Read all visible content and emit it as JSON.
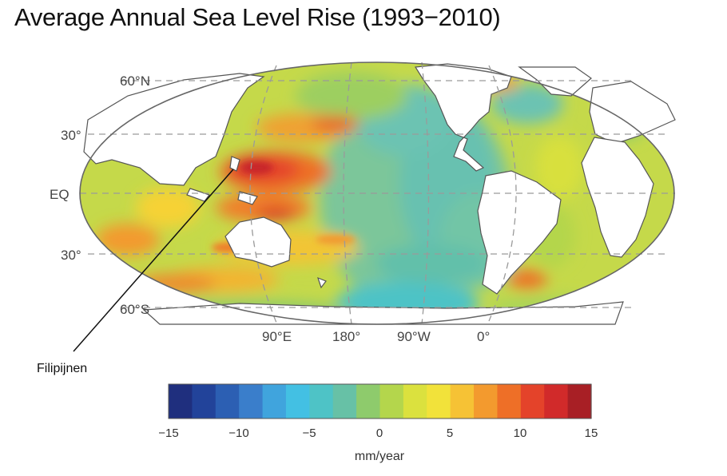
{
  "title": "Average Annual Sea Level Rise (1993−2010)",
  "map": {
    "latitude_labels": [
      "60°N",
      "30°",
      "EQ",
      "30°",
      "60°S"
    ],
    "longitude_labels": [
      "90°E",
      "180°",
      "90°W",
      "0°"
    ],
    "callout": "Filipijnen",
    "hotspot": "western Pacific near the Philippines",
    "projection": "elliptical world map centered on the Pacific"
  },
  "colorbar": {
    "ticks": [
      "−15",
      "−10",
      "−5",
      "0",
      "5",
      "10",
      "15"
    ],
    "min": -15,
    "max": 15,
    "unit": "mm/year",
    "colors": [
      "#1f2f7e",
      "#22439a",
      "#2c5fb3",
      "#3a7ecb",
      "#40a4dd",
      "#43c0e3",
      "#4ec3c6",
      "#67c1a6",
      "#8ecb6c",
      "#b4d64c",
      "#dbe13e",
      "#f2e23a",
      "#f6c235",
      "#f39a2e",
      "#ee6f27",
      "#e4432a",
      "#d12a2a",
      "#a81f25"
    ]
  },
  "legend_colors": {
    "land": "#ffffff",
    "land_outline": "#555555",
    "grid": "#9a9a9a"
  }
}
